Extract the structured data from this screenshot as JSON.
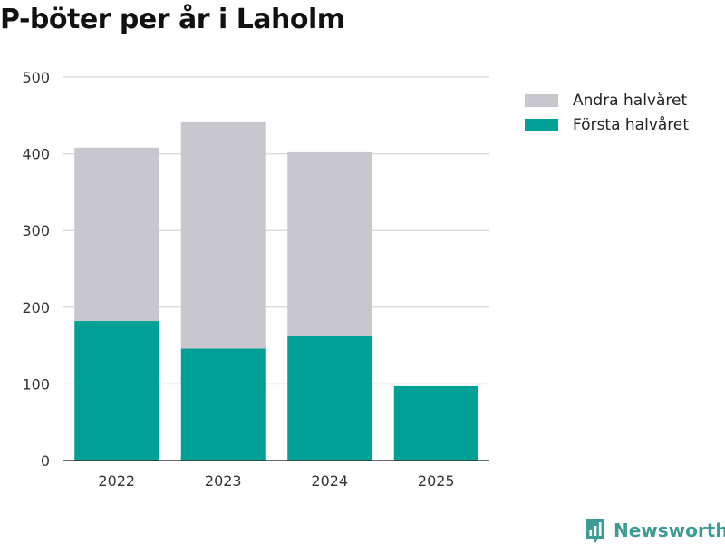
{
  "header": {
    "title": "P-böter per år i Laholm"
  },
  "brand": {
    "name": "Newsworthy",
    "icon": "bar-chart-pin-icon",
    "color": "#3d9b96"
  },
  "colors": {
    "first_half": "#00a096",
    "second_half": "#c7c7cd",
    "grid": "#dddddd",
    "axis": "#333333"
  },
  "chart_data": {
    "type": "bar",
    "stacked": true,
    "title": "P-böter per år i Laholm",
    "xlabel": "",
    "ylabel": "",
    "categories": [
      "2022",
      "2023",
      "2024",
      "2025"
    ],
    "series": [
      {
        "name": "Första halvåret",
        "values": [
          182,
          146,
          162,
          97
        ]
      },
      {
        "name": "Andra halvåret",
        "values": [
          226,
          295,
          240,
          0
        ]
      }
    ],
    "ylim": [
      0,
      500
    ],
    "yticks": [
      "0",
      "100",
      "200",
      "300",
      "400",
      "500"
    ],
    "grid": true,
    "legend": {
      "placement": "top-right",
      "items": [
        {
          "label": "Andra halvåret",
          "series": 1
        },
        {
          "label": "Första halvåret",
          "series": 0
        }
      ]
    }
  }
}
